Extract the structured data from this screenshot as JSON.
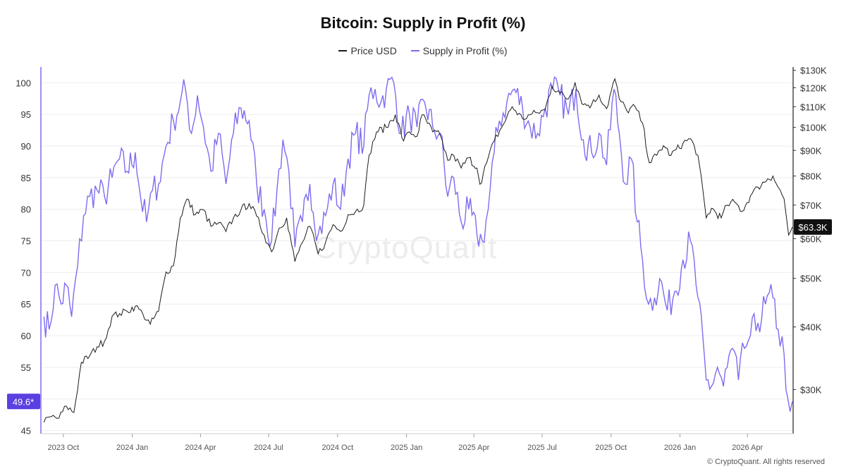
{
  "title": "Bitcoin: Supply in Profit (%)",
  "legend": {
    "price": "Price USD",
    "supply": "Supply in Profit (%)"
  },
  "watermark": "CryptoQuant",
  "copyright": "© CryptoQuant. All rights reserved",
  "colors": {
    "price": "#1a1a1a",
    "supply": "#7c6cf0",
    "badge_left": "#5b3fe0",
    "badge_right": "#111111"
  },
  "chart_data": {
    "type": "line",
    "title": "Bitcoin: Supply in Profit (%)",
    "x_range": [
      "2023-09-01",
      "2026-06-01"
    ],
    "x_ticks": [
      "2023 Oct",
      "2024 Jan",
      "2024 Apr",
      "2024 Jul",
      "2024 Oct",
      "2025 Jan",
      "2025 Apr",
      "2025 Jul",
      "2025 Oct",
      "2026 Jan",
      "2026 Apr"
    ],
    "x_tick_dates": [
      "2023-10-01",
      "2024-01-01",
      "2024-04-01",
      "2024-07-01",
      "2024-10-01",
      "2025-01-01",
      "2025-04-01",
      "2025-07-01",
      "2025-10-01",
      "2026-01-01",
      "2026-04-01"
    ],
    "left_axis": {
      "label": "",
      "range": [
        44.5,
        102.5
      ],
      "ticks": [
        45,
        50,
        55,
        60,
        65,
        70,
        75,
        80,
        85,
        90,
        95,
        100
      ]
    },
    "right_axis": {
      "label": "",
      "scale": "log",
      "range": [
        24500,
        132000
      ],
      "ticks": [
        30000,
        40000,
        50000,
        60000,
        70000,
        80000,
        90000,
        100000,
        110000,
        120000,
        130000
      ],
      "tick_labels": [
        "$30K",
        "$40K",
        "$50K",
        "$60K",
        "$70K",
        "$80K",
        "$90K",
        "$100K",
        "$110K",
        "$120K",
        "$130K"
      ]
    },
    "grid": true,
    "legend_position": "top-center",
    "current_labels": {
      "supply": "49.6*",
      "price": "$63.3K"
    },
    "series": [
      {
        "name": "Supply in Profit (%)",
        "axis": "left",
        "points": [
          [
            "2023-09-05",
            63
          ],
          [
            "2023-09-12",
            61
          ],
          [
            "2023-09-20",
            68
          ],
          [
            "2023-09-28",
            65
          ],
          [
            "2023-10-05",
            68
          ],
          [
            "2023-10-12",
            63
          ],
          [
            "2023-10-20",
            71
          ],
          [
            "2023-10-28",
            79
          ],
          [
            "2023-11-05",
            82
          ],
          [
            "2023-11-15",
            83
          ],
          [
            "2023-11-25",
            82
          ],
          [
            "2023-12-05",
            85
          ],
          [
            "2023-12-15",
            88
          ],
          [
            "2023-12-25",
            86
          ],
          [
            "2024-01-05",
            89
          ],
          [
            "2024-01-12",
            82
          ],
          [
            "2024-01-20",
            78
          ],
          [
            "2024-01-28",
            83
          ],
          [
            "2024-02-05",
            84
          ],
          [
            "2024-02-15",
            90
          ],
          [
            "2024-02-25",
            94
          ],
          [
            "2024-03-05",
            97
          ],
          [
            "2024-03-12",
            99
          ],
          [
            "2024-03-20",
            92
          ],
          [
            "2024-03-28",
            98
          ],
          [
            "2024-04-05",
            93
          ],
          [
            "2024-04-15",
            86
          ],
          [
            "2024-04-25",
            92
          ],
          [
            "2024-05-05",
            84
          ],
          [
            "2024-05-15",
            92
          ],
          [
            "2024-05-25",
            96
          ],
          [
            "2024-06-05",
            94
          ],
          [
            "2024-06-15",
            84
          ],
          [
            "2024-06-25",
            80
          ],
          [
            "2024-07-05",
            75
          ],
          [
            "2024-07-12",
            83
          ],
          [
            "2024-07-20",
            91
          ],
          [
            "2024-07-28",
            86
          ],
          [
            "2024-08-05",
            74
          ],
          [
            "2024-08-15",
            78
          ],
          [
            "2024-08-25",
            84
          ],
          [
            "2024-09-05",
            76
          ],
          [
            "2024-09-15",
            79
          ],
          [
            "2024-09-25",
            84
          ],
          [
            "2024-10-05",
            80
          ],
          [
            "2024-10-15",
            88
          ],
          [
            "2024-10-25",
            92
          ],
          [
            "2024-11-05",
            90
          ],
          [
            "2024-11-12",
            98
          ],
          [
            "2024-11-20",
            99
          ],
          [
            "2024-11-28",
            97
          ],
          [
            "2024-12-05",
            99
          ],
          [
            "2024-12-15",
            100
          ],
          [
            "2024-12-25",
            92
          ],
          [
            "2025-01-05",
            95
          ],
          [
            "2025-01-15",
            93
          ],
          [
            "2025-01-25",
            97
          ],
          [
            "2025-02-05",
            93
          ],
          [
            "2025-02-15",
            92
          ],
          [
            "2025-02-25",
            82
          ],
          [
            "2025-03-05",
            85
          ],
          [
            "2025-03-15",
            78
          ],
          [
            "2025-03-25",
            80
          ],
          [
            "2025-04-05",
            76
          ],
          [
            "2025-04-12",
            75
          ],
          [
            "2025-04-20",
            80
          ],
          [
            "2025-04-28",
            89
          ],
          [
            "2025-05-05",
            94
          ],
          [
            "2025-05-15",
            97
          ],
          [
            "2025-05-25",
            99
          ],
          [
            "2025-06-05",
            96
          ],
          [
            "2025-06-15",
            93
          ],
          [
            "2025-06-25",
            92
          ],
          [
            "2025-07-05",
            96
          ],
          [
            "2025-07-15",
            99
          ],
          [
            "2025-07-25",
            98
          ],
          [
            "2025-08-05",
            95
          ],
          [
            "2025-08-15",
            99
          ],
          [
            "2025-08-25",
            91
          ],
          [
            "2025-09-05",
            89
          ],
          [
            "2025-09-15",
            92
          ],
          [
            "2025-09-25",
            87
          ],
          [
            "2025-10-05",
            99
          ],
          [
            "2025-10-12",
            92
          ],
          [
            "2025-10-20",
            84
          ],
          [
            "2025-10-28",
            88
          ],
          [
            "2025-11-05",
            78
          ],
          [
            "2025-11-12",
            72
          ],
          [
            "2025-11-20",
            65
          ],
          [
            "2025-11-28",
            66
          ],
          [
            "2025-12-05",
            69
          ],
          [
            "2025-12-15",
            64
          ],
          [
            "2025-12-25",
            67
          ],
          [
            "2026-01-05",
            72
          ],
          [
            "2026-01-15",
            75
          ],
          [
            "2026-01-25",
            66
          ],
          [
            "2026-02-05",
            53
          ],
          [
            "2026-02-12",
            52
          ],
          [
            "2026-02-20",
            55
          ],
          [
            "2026-02-28",
            52
          ],
          [
            "2026-03-05",
            55
          ],
          [
            "2026-03-12",
            58
          ],
          [
            "2026-03-20",
            53
          ],
          [
            "2026-03-28",
            58
          ],
          [
            "2026-04-05",
            60
          ],
          [
            "2026-04-15",
            62
          ],
          [
            "2026-04-25",
            65
          ],
          [
            "2026-05-05",
            66
          ],
          [
            "2026-05-12",
            61
          ],
          [
            "2026-05-20",
            57
          ],
          [
            "2026-05-25",
            50
          ],
          [
            "2026-05-28",
            48
          ],
          [
            "2026-05-31",
            49.6
          ]
        ]
      },
      {
        "name": "Price USD",
        "axis": "right",
        "points": [
          [
            "2023-09-05",
            25800
          ],
          [
            "2023-09-15",
            26500
          ],
          [
            "2023-09-25",
            26300
          ],
          [
            "2023-10-05",
            27800
          ],
          [
            "2023-10-15",
            27000
          ],
          [
            "2023-10-25",
            34000
          ],
          [
            "2023-11-05",
            35000
          ],
          [
            "2023-11-15",
            36500
          ],
          [
            "2023-11-25",
            37500
          ],
          [
            "2023-12-05",
            42000
          ],
          [
            "2023-12-15",
            42500
          ],
          [
            "2023-12-25",
            43000
          ],
          [
            "2024-01-05",
            44000
          ],
          [
            "2024-01-15",
            42500
          ],
          [
            "2024-01-25",
            40500
          ],
          [
            "2024-02-05",
            43000
          ],
          [
            "2024-02-15",
            51500
          ],
          [
            "2024-02-25",
            53000
          ],
          [
            "2024-03-05",
            66000
          ],
          [
            "2024-03-14",
            72000
          ],
          [
            "2024-03-25",
            67000
          ],
          [
            "2024-04-05",
            68500
          ],
          [
            "2024-04-15",
            63500
          ],
          [
            "2024-04-25",
            64500
          ],
          [
            "2024-05-05",
            62000
          ],
          [
            "2024-05-15",
            66000
          ],
          [
            "2024-05-25",
            68500
          ],
          [
            "2024-06-05",
            70500
          ],
          [
            "2024-06-15",
            66500
          ],
          [
            "2024-06-25",
            61000
          ],
          [
            "2024-07-05",
            56500
          ],
          [
            "2024-07-15",
            63000
          ],
          [
            "2024-07-25",
            66000
          ],
          [
            "2024-08-05",
            54000
          ],
          [
            "2024-08-15",
            59000
          ],
          [
            "2024-08-25",
            63500
          ],
          [
            "2024-09-05",
            56000
          ],
          [
            "2024-09-15",
            59000
          ],
          [
            "2024-09-25",
            64000
          ],
          [
            "2024-10-05",
            62000
          ],
          [
            "2024-10-15",
            67000
          ],
          [
            "2024-10-25",
            68000
          ],
          [
            "2024-11-05",
            70000
          ],
          [
            "2024-11-12",
            88000
          ],
          [
            "2024-11-22",
            98000
          ],
          [
            "2024-12-05",
            100000
          ],
          [
            "2024-12-17",
            106000
          ],
          [
            "2024-12-28",
            94000
          ],
          [
            "2025-01-05",
            98000
          ],
          [
            "2025-01-15",
            96000
          ],
          [
            "2025-01-22",
            106000
          ],
          [
            "2025-02-05",
            98000
          ],
          [
            "2025-02-15",
            96500
          ],
          [
            "2025-02-25",
            86000
          ],
          [
            "2025-03-05",
            88000
          ],
          [
            "2025-03-15",
            83000
          ],
          [
            "2025-03-25",
            87000
          ],
          [
            "2025-04-05",
            83000
          ],
          [
            "2025-04-09",
            77000
          ],
          [
            "2025-04-18",
            85000
          ],
          [
            "2025-04-28",
            94000
          ],
          [
            "2025-05-08",
            100000
          ],
          [
            "2025-05-22",
            110000
          ],
          [
            "2025-06-05",
            104000
          ],
          [
            "2025-06-15",
            106000
          ],
          [
            "2025-06-25",
            107000
          ],
          [
            "2025-07-05",
            108500
          ],
          [
            "2025-07-14",
            121000
          ],
          [
            "2025-07-25",
            117000
          ],
          [
            "2025-08-05",
            114000
          ],
          [
            "2025-08-14",
            123000
          ],
          [
            "2025-08-25",
            111000
          ],
          [
            "2025-09-05",
            111000
          ],
          [
            "2025-09-15",
            116000
          ],
          [
            "2025-09-25",
            109000
          ],
          [
            "2025-10-06",
            125000
          ],
          [
            "2025-10-12",
            114000
          ],
          [
            "2025-10-22",
            108000
          ],
          [
            "2025-11-02",
            110000
          ],
          [
            "2025-11-12",
            102000
          ],
          [
            "2025-11-21",
            85000
          ],
          [
            "2025-12-01",
            88000
          ],
          [
            "2025-12-10",
            92000
          ],
          [
            "2025-12-20",
            88000
          ],
          [
            "2026-01-05",
            93000
          ],
          [
            "2026-01-15",
            95000
          ],
          [
            "2026-01-25",
            88000
          ],
          [
            "2026-02-05",
            66000
          ],
          [
            "2026-02-12",
            69000
          ],
          [
            "2026-02-25",
            66000
          ],
          [
            "2026-03-05",
            70000
          ],
          [
            "2026-03-15",
            71000
          ],
          [
            "2026-03-25",
            68000
          ],
          [
            "2026-04-05",
            73000
          ],
          [
            "2026-04-15",
            76000
          ],
          [
            "2026-04-28",
            79000
          ],
          [
            "2026-05-05",
            80000
          ],
          [
            "2026-05-12",
            76000
          ],
          [
            "2026-05-20",
            72000
          ],
          [
            "2026-05-26",
            61000
          ],
          [
            "2026-05-31",
            63300
          ]
        ]
      }
    ]
  }
}
